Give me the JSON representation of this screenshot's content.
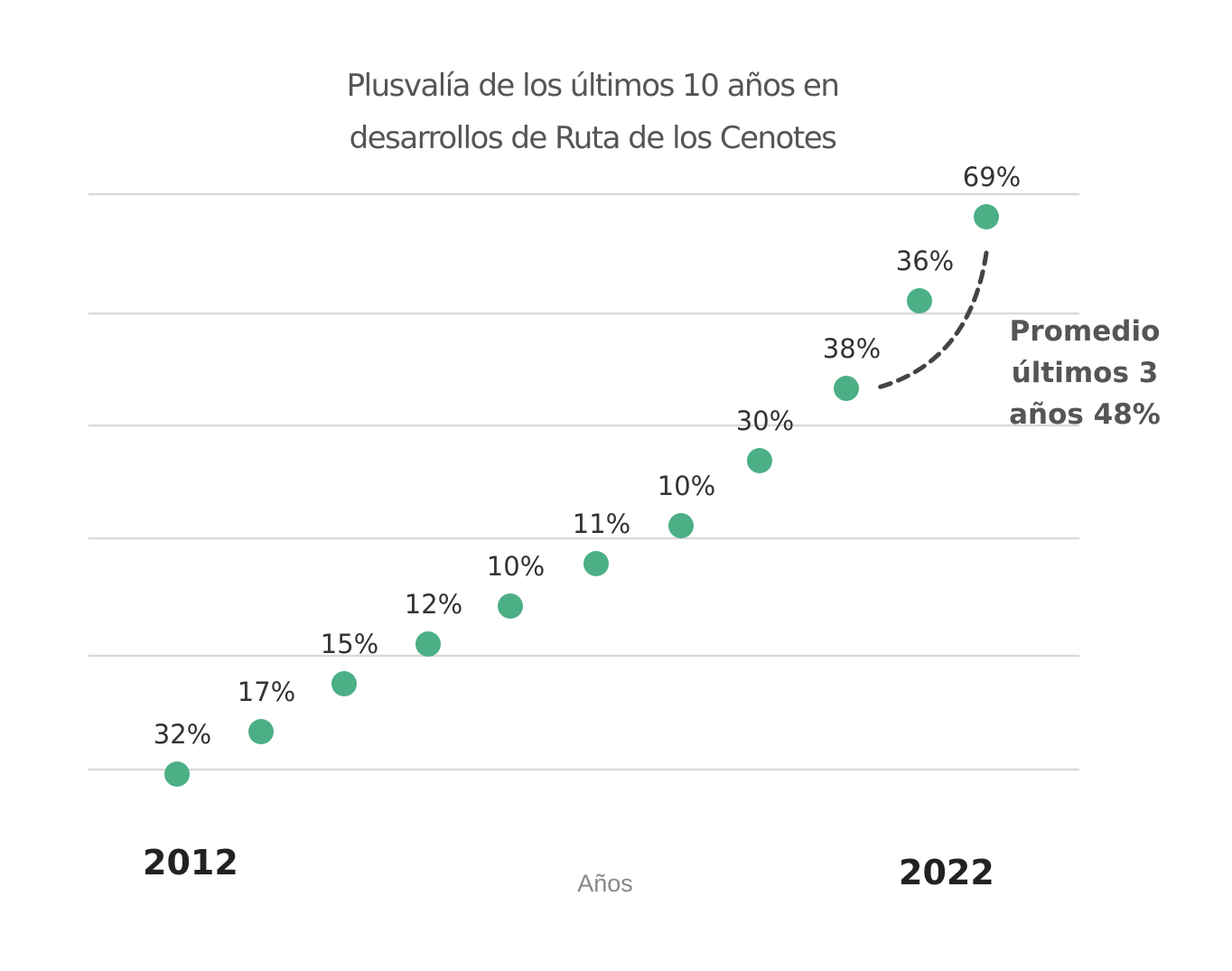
{
  "chart_data": {
    "type": "scatter",
    "title_lines": [
      "Plusvalía de los últimos 10 años en",
      "desarrollos de Ruta de los Cenotes"
    ],
    "xlabel": "Años",
    "x_tick_labels": {
      "start": "2012",
      "end": "2022"
    },
    "points": [
      {
        "label": "32%"
      },
      {
        "label": "17%"
      },
      {
        "label": "15%"
      },
      {
        "label": "12%"
      },
      {
        "label": "10%"
      },
      {
        "label": "11%"
      },
      {
        "label": "10%"
      },
      {
        "label": "30%"
      },
      {
        "label": "38%"
      },
      {
        "label": "36%"
      },
      {
        "label": "69%"
      }
    ],
    "grid": true,
    "annotation": {
      "lines": [
        "Promedio",
        "últimos 3",
        "años 48%"
      ]
    },
    "colors": {
      "point": "#4caf86",
      "grid": "#d9d9d9",
      "title": "#555555"
    }
  }
}
